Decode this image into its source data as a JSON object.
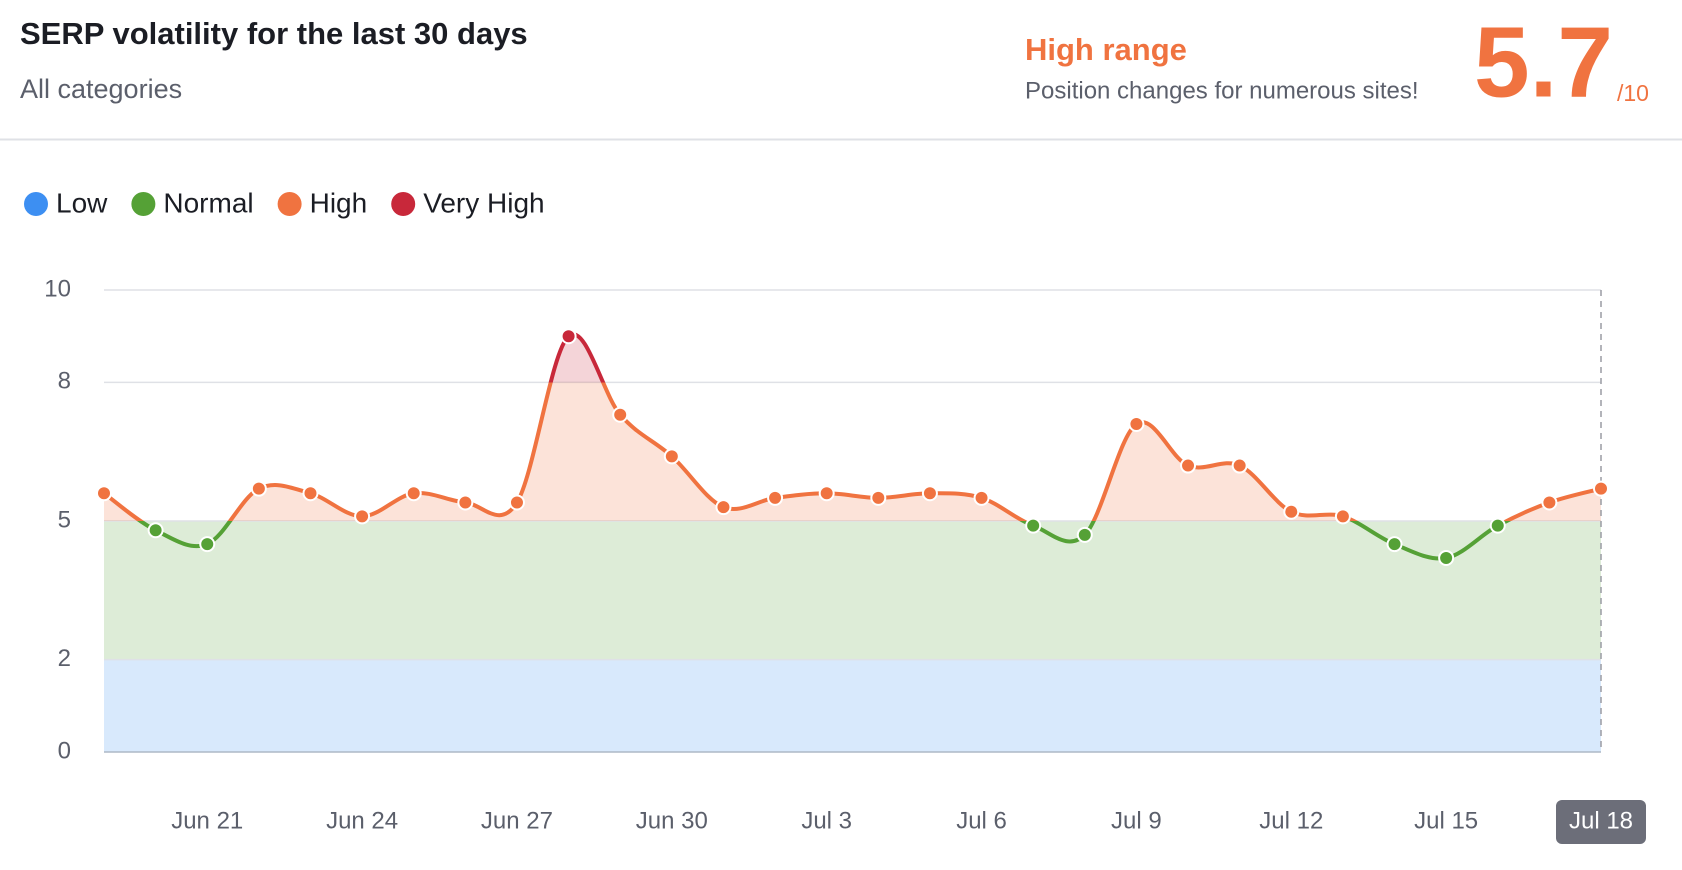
{
  "header": {
    "title": "SERP volatility for the last 30 days",
    "subtitle": "All categories",
    "range_label": "High range",
    "range_description": "Position changes for numerous sites!",
    "score": 5.7,
    "score_scale": "/10"
  },
  "chart_data": {
    "type": "line",
    "categories": [
      null,
      null,
      "Jun 21",
      null,
      null,
      "Jun 24",
      null,
      null,
      "Jun 27",
      null,
      null,
      "Jun 30",
      null,
      null,
      "Jul 3",
      null,
      null,
      "Jul 6",
      null,
      null,
      "Jul 9",
      null,
      null,
      "Jul 12",
      null,
      null,
      "Jul 15",
      null,
      null,
      "Jul 18"
    ],
    "values": [
      5.6,
      4.8,
      4.5,
      5.7,
      5.6,
      5.1,
      5.6,
      5.4,
      5.4,
      9.0,
      7.3,
      6.4,
      5.3,
      5.5,
      5.6,
      5.5,
      5.6,
      5.5,
      4.9,
      4.7,
      7.1,
      6.2,
      6.2,
      5.2,
      5.1,
      4.5,
      4.2,
      4.9,
      5.4,
      5.7
    ],
    "bands": [
      {
        "name": "Low",
        "color": "#3d8ff2",
        "range": [
          0,
          2
        ]
      },
      {
        "name": "Normal",
        "color": "#55a136",
        "range": [
          2,
          5
        ]
      },
      {
        "name": "High",
        "color": "#f07340",
        "range": [
          5,
          8
        ]
      },
      {
        "name": "Very High",
        "color": "#c8283a",
        "range": [
          8,
          10
        ]
      }
    ],
    "ylim": [
      0,
      10
    ],
    "yticks": [
      0,
      2,
      5,
      8,
      10
    ],
    "grid": true,
    "legend": "top-left"
  }
}
